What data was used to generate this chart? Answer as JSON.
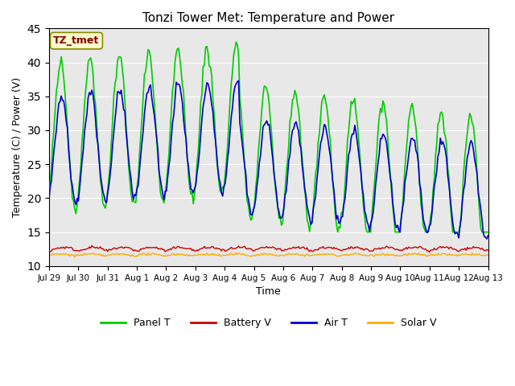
{
  "title": "Tonzi Tower Met: Temperature and Power",
  "xlabel": "Time",
  "ylabel": "Temperature (C) / Power (V)",
  "ylim": [
    10,
    45
  ],
  "yticks": [
    10,
    15,
    20,
    25,
    30,
    35,
    40,
    45
  ],
  "x_tick_labels": [
    "Jul 29",
    "Jul 30",
    "Jul 31",
    "Aug 1",
    "Aug 2",
    "Aug 3",
    "Aug 4",
    "Aug 5",
    "Aug 6",
    "Aug 7",
    "Aug 8",
    "Aug 9",
    "Aug 10",
    "Aug 11",
    "Aug 12",
    "Aug 13"
  ],
  "panel_color": "#00cc00",
  "battery_color": "#cc0000",
  "air_color": "#0000cc",
  "solar_color": "#ffaa00",
  "bg_color": "#e8e8e8",
  "annotation_text": "TZ_tmet",
  "annotation_bg": "#ffffcc",
  "annotation_color": "#880000",
  "legend_labels": [
    "Panel T",
    "Battery V",
    "Air T",
    "Solar V"
  ],
  "figsize": [
    6.4,
    4.8
  ],
  "dpi": 100
}
